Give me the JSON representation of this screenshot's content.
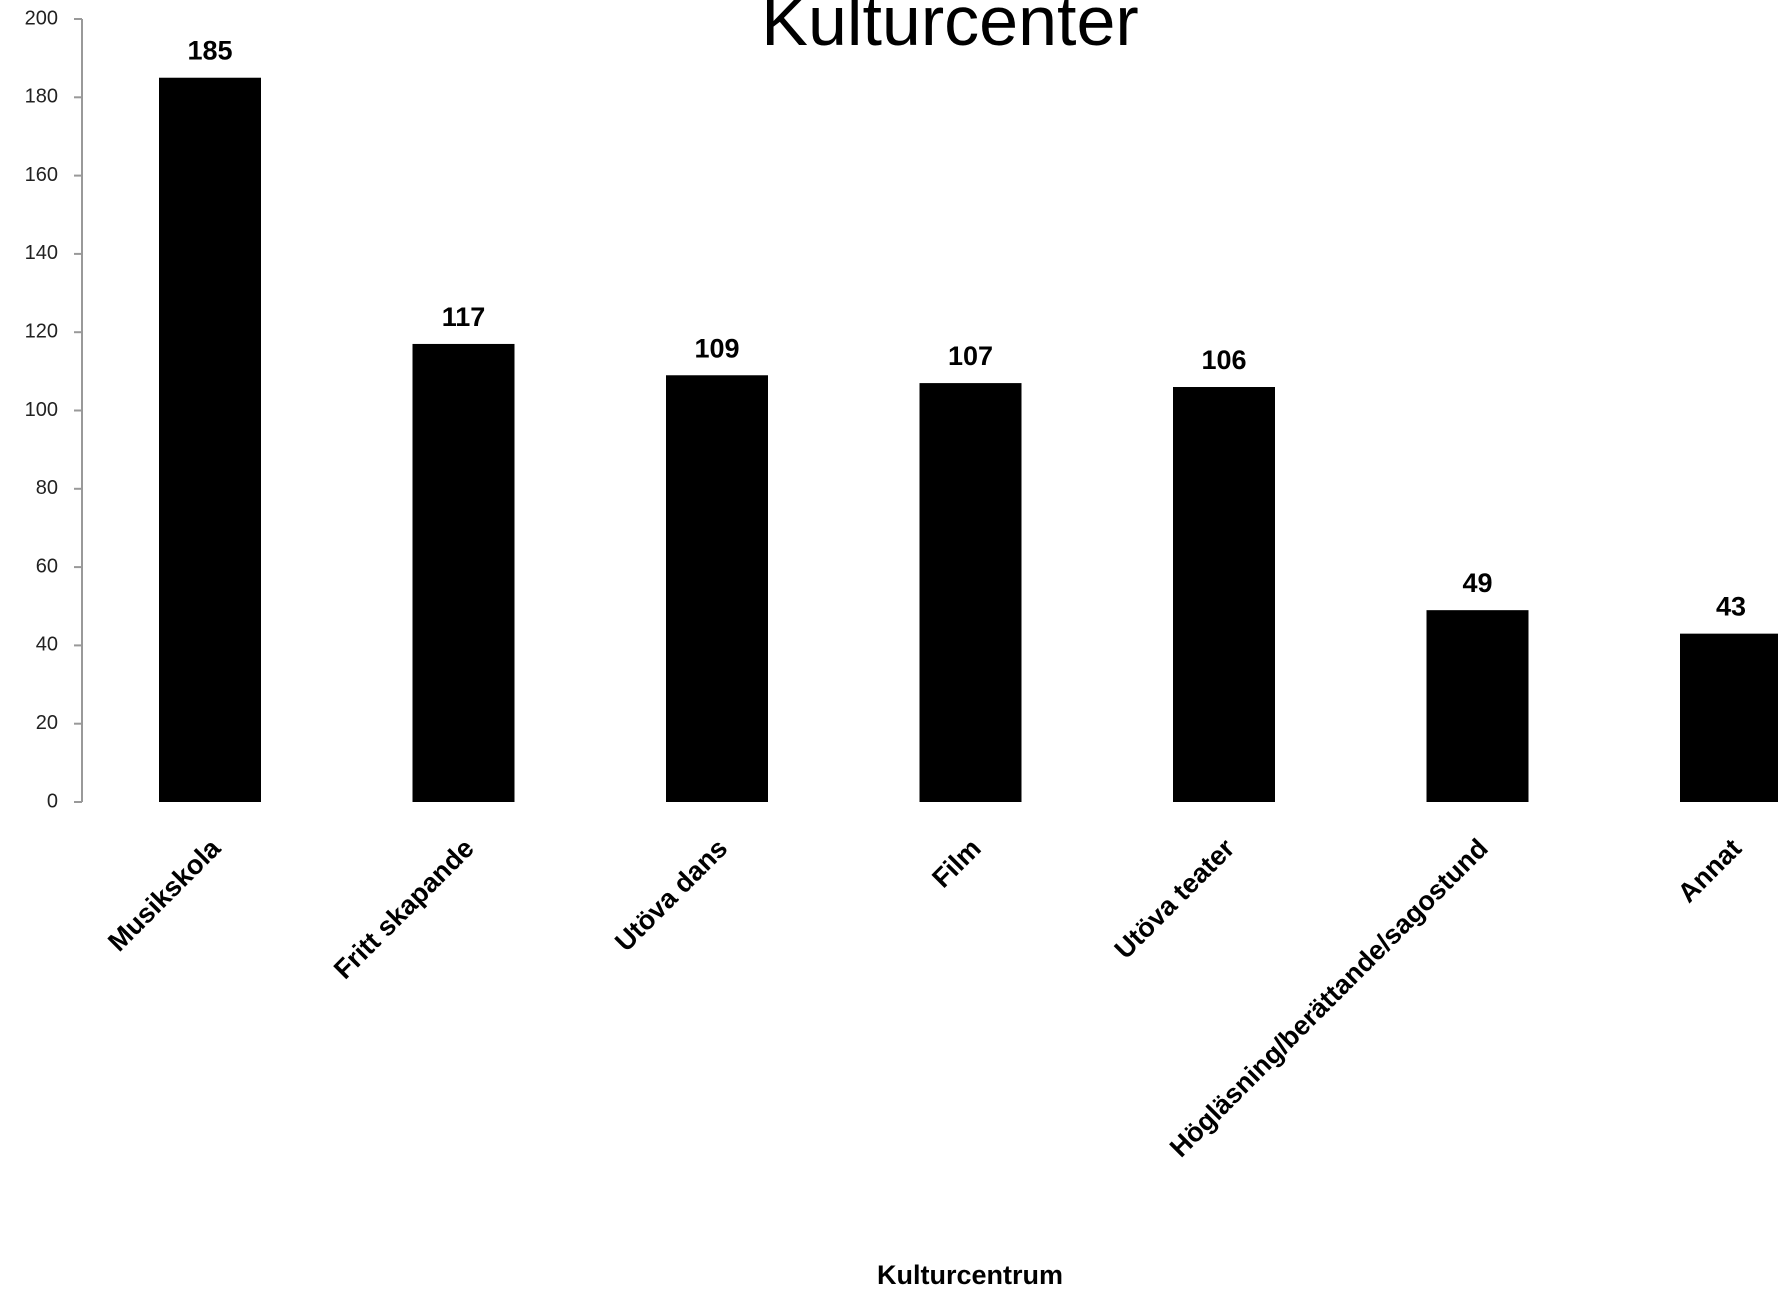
{
  "chart_data": {
    "type": "bar",
    "title": "Kulturcenter",
    "x_label": "Kulturcentrum",
    "categories": [
      "Musikskola",
      "Fritt skapande",
      "Utöva dans",
      "Film",
      "Utöva teater",
      "Högläsning/berättande/sagostund",
      "Annat"
    ],
    "values": [
      185,
      117,
      109,
      107,
      106,
      49,
      43
    ],
    "color": "#000000",
    "ylim": [
      0,
      200
    ],
    "yticks": [
      0,
      20,
      40,
      60,
      80,
      100,
      120,
      140,
      160,
      180,
      200
    ],
    "grid": false
  }
}
